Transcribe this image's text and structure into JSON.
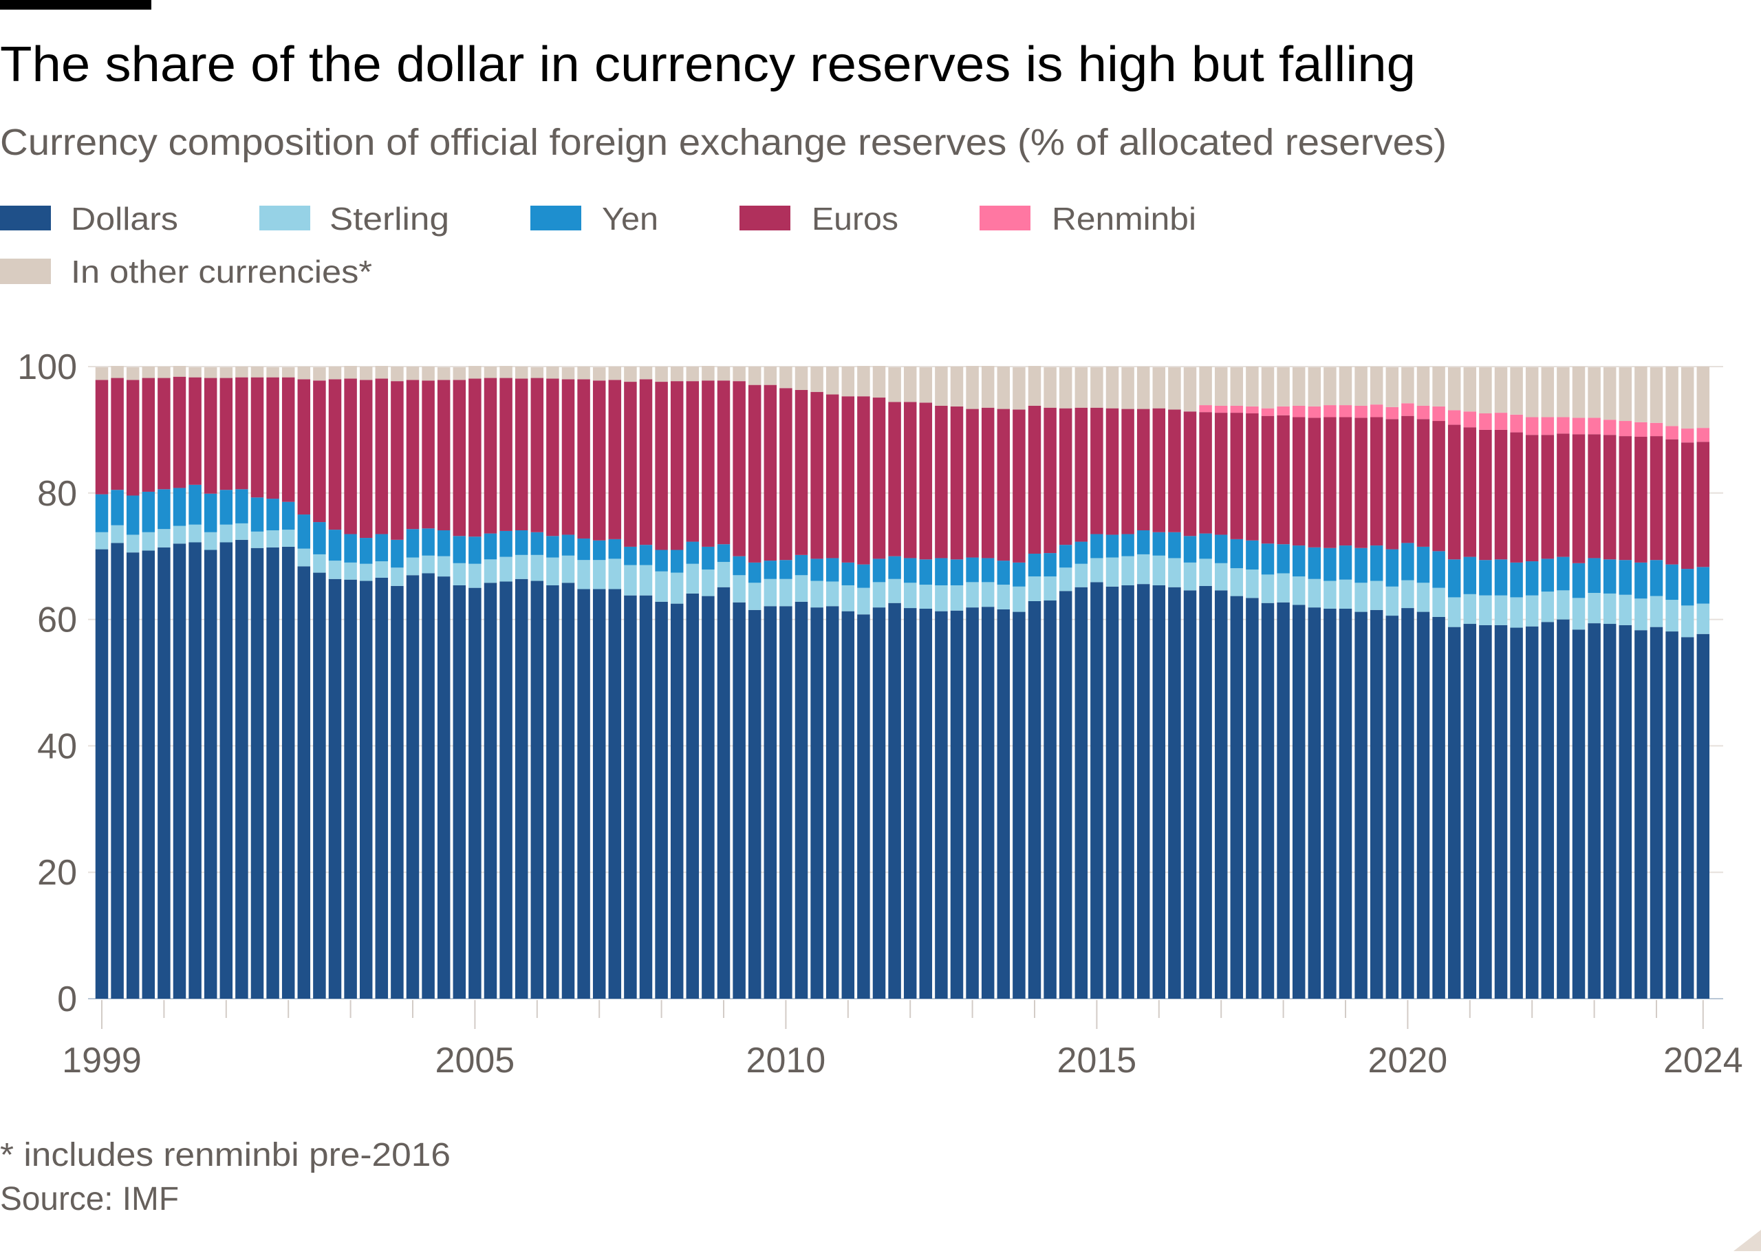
{
  "header": {
    "title": "The share of the dollar in currency reserves is high but falling",
    "subtitle": "Currency composition of official foreign exchange reserves (% of allocated reserves)"
  },
  "legend": [
    {
      "label": "Dollars",
      "color": "#1f5089"
    },
    {
      "label": "Sterling",
      "color": "#96d2e6"
    },
    {
      "label": "Yen",
      "color": "#1e8fcf"
    },
    {
      "label": "Euros",
      "color": "#b0305c"
    },
    {
      "label": "Renminbi",
      "color": "#ff77a2"
    },
    {
      "label": "In other currencies*",
      "color": "#d9ccc1"
    }
  ],
  "footer": {
    "note": "* includes renminbi pre-2016",
    "source": "Source: IMF"
  },
  "chart_data": {
    "type": "bar",
    "stacked": true,
    "frequency": "quarterly",
    "x_range": [
      "1999 Q1",
      "2024 Q4"
    ],
    "x_tick_labels": [
      "1999",
      "2005",
      "2010",
      "2015",
      "2020",
      "2024"
    ],
    "y_tick_labels": [
      "0",
      "20",
      "40",
      "60",
      "80",
      "100"
    ],
    "ylim": [
      0,
      100
    ],
    "grid": true,
    "legend_position": "top-left",
    "title": "The share of the dollar in currency reserves is high but falling",
    "subtitle": "Currency composition of official foreign exchange reserves (% of allocated reserves)",
    "xlabel": "",
    "ylabel": "",
    "series": [
      {
        "name": "Dollars",
        "color": "#1f5089",
        "values": [
          71.1,
          72.1,
          70.6,
          70.9,
          71.4,
          72.0,
          72.2,
          71.0,
          72.2,
          72.6,
          71.3,
          71.4,
          71.5,
          68.4,
          67.4,
          66.4,
          66.3,
          66.1,
          66.6,
          65.3,
          67.0,
          67.3,
          66.8,
          65.4,
          65.0,
          65.8,
          66.0,
          66.4,
          66.1,
          65.4,
          65.8,
          64.8,
          64.8,
          64.8,
          63.8,
          63.8,
          62.8,
          62.5,
          64.1,
          63.7,
          65.1,
          62.7,
          61.5,
          62.1,
          62.1,
          62.8,
          61.9,
          62.1,
          61.3,
          60.8,
          61.9,
          62.6,
          61.8,
          61.7,
          61.3,
          61.4,
          61.9,
          62.0,
          61.6,
          61.2,
          62.9,
          63.0,
          64.5,
          65.1,
          65.9,
          65.2,
          65.4,
          65.6,
          65.4,
          65.1,
          64.6,
          65.3,
          64.6,
          63.7,
          63.4,
          62.6,
          62.7,
          62.3,
          61.9,
          61.7,
          61.7,
          61.2,
          61.5,
          60.6,
          61.8,
          61.2,
          60.4,
          58.8,
          59.3,
          59.1,
          59.1,
          58.7,
          58.9,
          59.6,
          60.0,
          58.4,
          59.4,
          59.3,
          59.1,
          58.3,
          58.8,
          58.1,
          57.2,
          57.7
        ]
      },
      {
        "name": "Sterling",
        "color": "#96d2e6",
        "values": [
          2.7,
          2.8,
          2.8,
          2.9,
          2.9,
          2.8,
          2.8,
          2.8,
          2.8,
          2.6,
          2.6,
          2.7,
          2.7,
          2.8,
          2.9,
          2.9,
          2.7,
          2.7,
          2.6,
          2.9,
          2.8,
          2.8,
          3.2,
          3.5,
          3.8,
          3.7,
          3.9,
          3.8,
          4.1,
          4.4,
          4.3,
          4.6,
          4.6,
          4.8,
          4.8,
          4.8,
          4.8,
          4.9,
          4.7,
          4.2,
          4.0,
          4.3,
          4.3,
          4.3,
          4.3,
          4.2,
          4.2,
          3.9,
          4.1,
          4.2,
          4.0,
          3.8,
          4.0,
          3.8,
          4.1,
          4.0,
          4.0,
          3.9,
          3.9,
          4.0,
          3.9,
          3.8,
          3.7,
          3.7,
          3.8,
          4.6,
          4.6,
          4.7,
          4.7,
          4.6,
          4.4,
          4.3,
          4.3,
          4.4,
          4.5,
          4.5,
          4.6,
          4.5,
          4.5,
          4.4,
          4.6,
          4.6,
          4.6,
          4.6,
          4.4,
          4.6,
          4.6,
          4.7,
          4.7,
          4.7,
          4.7,
          4.8,
          4.9,
          4.8,
          4.6,
          5.0,
          4.8,
          4.8,
          4.8,
          5.0,
          4.9,
          5.0,
          5.0,
          4.8
        ]
      },
      {
        "name": "Yen",
        "color": "#1e8fcf",
        "values": [
          6.0,
          5.6,
          6.2,
          6.4,
          6.3,
          6.0,
          6.3,
          6.1,
          5.5,
          5.4,
          5.4,
          5.0,
          4.4,
          5.4,
          5.1,
          4.9,
          4.5,
          4.1,
          4.3,
          4.4,
          4.5,
          4.3,
          4.1,
          4.3,
          4.3,
          4.1,
          4.1,
          3.9,
          3.6,
          3.4,
          3.3,
          3.4,
          3.1,
          3.1,
          2.9,
          3.2,
          3.4,
          3.6,
          3.5,
          3.6,
          2.8,
          3.0,
          3.2,
          2.9,
          3.0,
          3.2,
          3.5,
          3.7,
          3.6,
          3.7,
          3.7,
          3.6,
          3.9,
          4.0,
          4.3,
          4.1,
          3.9,
          3.8,
          3.8,
          3.8,
          3.6,
          3.7,
          3.6,
          3.5,
          3.8,
          3.6,
          3.5,
          3.8,
          3.7,
          4.1,
          4.2,
          4.0,
          4.5,
          4.6,
          4.6,
          4.9,
          4.6,
          4.9,
          5.0,
          5.2,
          5.4,
          5.5,
          5.6,
          5.9,
          5.9,
          5.7,
          5.8,
          6.0,
          5.9,
          5.6,
          5.7,
          5.5,
          5.4,
          5.2,
          5.3,
          5.5,
          5.5,
          5.4,
          5.5,
          5.7,
          5.7,
          5.6,
          5.8,
          5.8
        ]
      },
      {
        "name": "Euros",
        "color": "#b0305c",
        "values": [
          18.1,
          17.7,
          18.3,
          18.0,
          17.6,
          17.6,
          17.0,
          18.3,
          17.7,
          17.7,
          19.0,
          19.2,
          19.7,
          21.4,
          22.4,
          23.8,
          24.6,
          25.0,
          24.6,
          25.1,
          23.6,
          23.4,
          23.8,
          24.7,
          25.0,
          24.6,
          24.2,
          24.0,
          24.4,
          24.9,
          24.6,
          25.2,
          25.3,
          25.2,
          26.1,
          26.2,
          26.6,
          26.7,
          25.4,
          26.3,
          25.9,
          27.7,
          28.1,
          27.8,
          27.2,
          26.1,
          26.4,
          25.9,
          26.3,
          26.6,
          25.5,
          24.4,
          24.7,
          24.8,
          24.1,
          24.2,
          23.5,
          23.8,
          24.0,
          24.2,
          23.4,
          23.0,
          21.6,
          21.2,
          20.0,
          20.0,
          19.8,
          19.2,
          19.6,
          19.4,
          19.7,
          19.2,
          19.3,
          20.0,
          20.1,
          20.2,
          20.4,
          20.3,
          20.5,
          20.7,
          20.3,
          20.6,
          20.3,
          20.6,
          20.1,
          20.2,
          20.6,
          21.3,
          20.5,
          20.6,
          20.5,
          20.6,
          20.0,
          19.6,
          19.5,
          20.4,
          19.6,
          19.7,
          19.6,
          19.9,
          19.6,
          19.8,
          20.0,
          19.8
        ]
      },
      {
        "name": "Renminbi",
        "color": "#ff77a2",
        "values": [
          null,
          null,
          null,
          null,
          null,
          null,
          null,
          null,
          null,
          null,
          null,
          null,
          null,
          null,
          null,
          null,
          null,
          null,
          null,
          null,
          null,
          null,
          null,
          null,
          null,
          null,
          null,
          null,
          null,
          null,
          null,
          null,
          null,
          null,
          null,
          null,
          null,
          null,
          null,
          null,
          null,
          null,
          null,
          null,
          null,
          null,
          null,
          null,
          null,
          null,
          null,
          null,
          null,
          null,
          null,
          null,
          null,
          null,
          null,
          null,
          null,
          null,
          null,
          null,
          null,
          null,
          null,
          null,
          null,
          null,
          null,
          1.1,
          1.1,
          1.1,
          1.1,
          1.2,
          1.4,
          1.8,
          1.8,
          1.9,
          1.9,
          1.9,
          2.0,
          1.9,
          2.0,
          2.1,
          2.3,
          2.3,
          2.5,
          2.6,
          2.7,
          2.8,
          2.8,
          2.8,
          2.6,
          2.6,
          2.6,
          2.4,
          2.4,
          2.3,
          2.1,
          2.1,
          2.2,
          2.2
        ]
      },
      {
        "name": "In other currencies*",
        "color": "#d9ccc1",
        "values": [
          2.0,
          1.9,
          2.0,
          1.8,
          1.8,
          1.7,
          1.6,
          1.7,
          1.7,
          1.7,
          1.7,
          1.6,
          1.6,
          2.0,
          2.1,
          2.0,
          2.0,
          2.1,
          2.0,
          2.3,
          2.1,
          2.2,
          2.0,
          2.0,
          2.0,
          1.8,
          1.9,
          1.9,
          1.7,
          1.9,
          1.9,
          2.0,
          2.1,
          2.1,
          2.4,
          2.0,
          2.4,
          2.3,
          2.3,
          2.3,
          2.2,
          2.3,
          2.9,
          2.9,
          3.4,
          3.7,
          4.0,
          4.4,
          4.7,
          4.8,
          5.0,
          5.5,
          5.6,
          5.6,
          6.2,
          6.3,
          6.8,
          6.6,
          6.7,
          6.7,
          6.3,
          6.4,
          6.5,
          6.4,
          6.4,
          6.6,
          6.6,
          6.7,
          6.5,
          6.7,
          7.0,
          6.1,
          6.1,
          6.1,
          6.3,
          6.5,
          6.2,
          6.1,
          6.2,
          6.0,
          6.1,
          6.2,
          6.0,
          6.3,
          5.7,
          6.2,
          6.3,
          6.8,
          7.0,
          7.3,
          7.2,
          7.5,
          7.9,
          7.9,
          7.9,
          8.1,
          8.0,
          8.3,
          8.5,
          8.8,
          8.8,
          9.4,
          9.7,
          9.7
        ]
      }
    ]
  }
}
